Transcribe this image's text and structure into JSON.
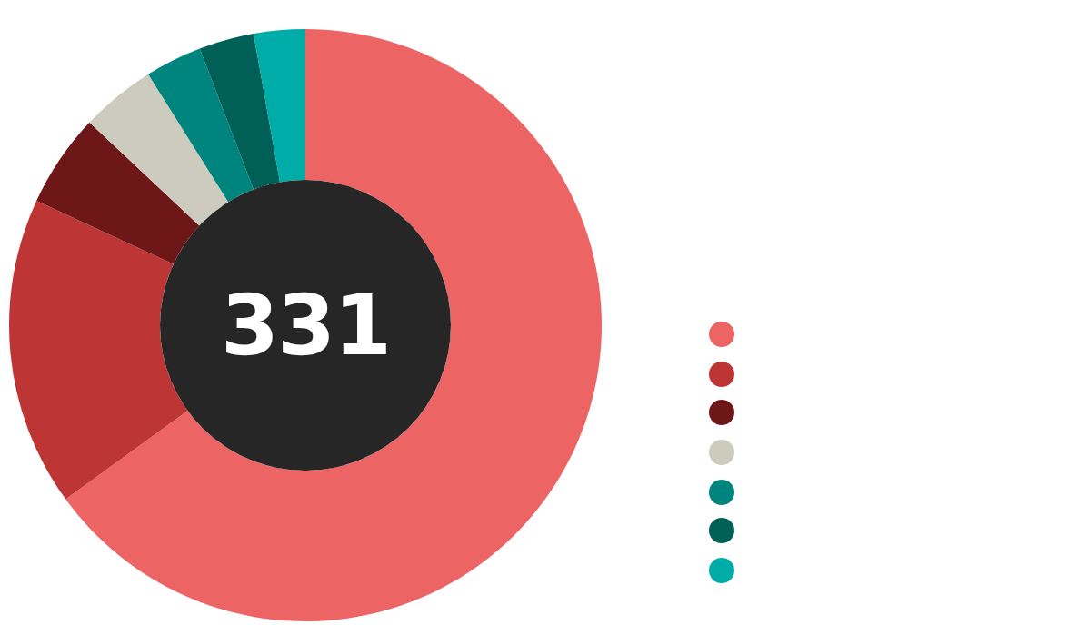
{
  "chart_data": {
    "type": "donut",
    "categories": [
      null,
      null,
      null,
      null,
      null,
      null,
      null
    ],
    "values": [
      65.0,
      16.9,
      5.1,
      4.1,
      3.1,
      3.0,
      2.8
    ],
    "colors": [
      "#ec6463",
      "#bd3535",
      "#6d1719",
      "#cccbbe",
      "#00857e",
      "#005f56",
      "#00aca8"
    ],
    "annotations": [
      "331"
    ]
  }
}
